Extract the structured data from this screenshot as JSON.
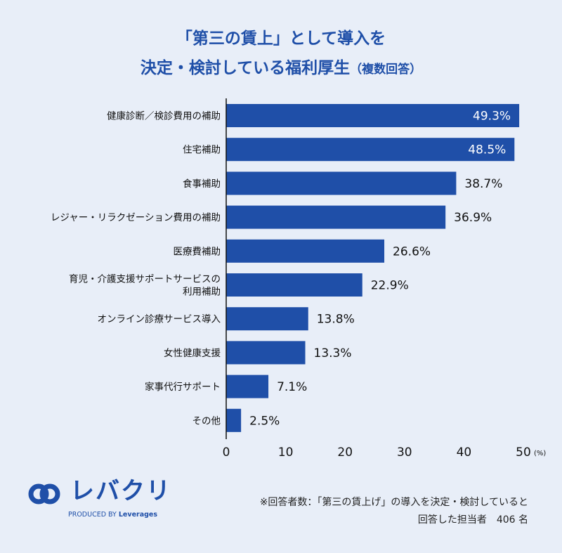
{
  "title": {
    "line1": "「第三の賃上」として導入を",
    "line2": "決定・検討している福利厚生",
    "line2_note": "（複数回答）"
  },
  "chart_data": {
    "type": "bar",
    "orientation": "horizontal",
    "categories": [
      [
        "健康診断／検診費用の補助"
      ],
      [
        "住宅補助"
      ],
      [
        "食事補助"
      ],
      [
        "レジャー・リラクゼーション費用の補助"
      ],
      [
        "医療費補助"
      ],
      [
        "育児・介護支援サポートサービスの",
        "利用補助"
      ],
      [
        "オンライン診療サービス導入"
      ],
      [
        "女性健康支援"
      ],
      [
        "家事代行サポート"
      ],
      [
        "その他"
      ]
    ],
    "values": [
      49.3,
      48.5,
      38.7,
      36.9,
      26.6,
      22.9,
      13.8,
      13.3,
      7.1,
      2.5
    ],
    "value_labels": [
      "49.3%",
      "48.5%",
      "38.7%",
      "36.9%",
      "26.6%",
      "22.9%",
      "13.8%",
      "13.3%",
      "7.1%",
      "2.5%"
    ],
    "xlim": [
      0,
      50
    ],
    "xticks": [
      0,
      10,
      20,
      30,
      40,
      50
    ],
    "x_unit": "(%)",
    "bar_color": "#1f4fa8",
    "grid": false
  },
  "footnote": {
    "line1": "※回答者数：「第三の賃上げ」の導入を決定・検討していると",
    "line2": "回答した担当者　406 名"
  },
  "logo": {
    "name": "レバクリ",
    "sub_prefix": "PRODUCED BY ",
    "sub_brand": "Leverages"
  },
  "colors": {
    "background": "#e8eef8",
    "accent": "#1f4fa8"
  }
}
